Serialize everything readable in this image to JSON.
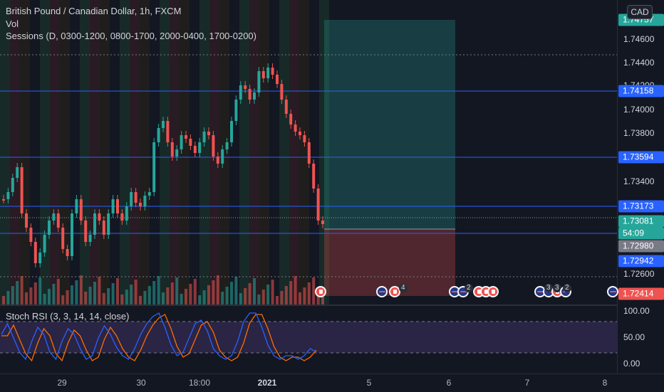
{
  "legend": {
    "symbol_title": "British Pound / Canadian Dollar, 1h, FXCM",
    "volume_label": "Vol",
    "sessions_label": "Sessions (D, 0300-1200, 0800-1700, 2000-0400, 1700-0200)",
    "rsi_label": "Stoch RSI (3, 3, 14, 14, close)"
  },
  "currency_button": "CAD",
  "price_axis": {
    "ticks": [
      "1.74600",
      "1.74400",
      "1.74200",
      "1.74000",
      "1.73800",
      "1.73400",
      "1.72600"
    ],
    "badges": [
      {
        "label": "1.74757",
        "color": "#26a69a"
      },
      {
        "label": "1.74158",
        "color": "#2962ff"
      },
      {
        "label": "1.73594",
        "color": "#2962ff"
      },
      {
        "label": "1.73173",
        "color": "#2962ff"
      },
      {
        "label": "1.73081",
        "color": "#26a69a"
      },
      {
        "label": "54:09",
        "color": "#26a69a"
      },
      {
        "label": "1.72980",
        "color": "#787b86"
      },
      {
        "label": "1.72942",
        "color": "#2962ff"
      },
      {
        "label": "1.72414",
        "color": "#ef5350"
      }
    ]
  },
  "rsi_axis": {
    "ticks": [
      "100.00",
      "50.00",
      "0.00"
    ]
  },
  "time_axis": {
    "labels": [
      "29",
      "30",
      "18:00",
      "2021",
      "5",
      "6",
      "7",
      "8"
    ],
    "bold_index": 3
  },
  "events": {
    "counts": [
      "4",
      "2",
      "3",
      "3",
      "2"
    ]
  },
  "colors": {
    "up": "#26a69a",
    "down": "#ef5350",
    "line": "#2962ff",
    "rsi_k": "#2962ff",
    "rsi_d": "#ff6d00",
    "rsi_band": "#7e57c2"
  }
}
